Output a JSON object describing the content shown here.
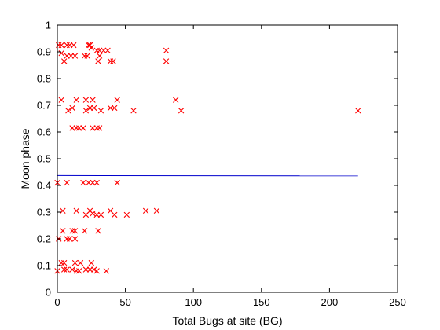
{
  "chart_data": {
    "type": "scatter",
    "title": "",
    "xlabel": "Total Bugs at site (BG)",
    "ylabel": "Moon phase",
    "xlim": [
      0,
      250
    ],
    "ylim": [
      0,
      1
    ],
    "xticks": [
      0,
      50,
      100,
      150,
      200,
      250
    ],
    "yticks": [
      0,
      0.1,
      0.2,
      0.3,
      0.4,
      0.5,
      0.6,
      0.7,
      0.8,
      0.9,
      1
    ],
    "grid": false,
    "legend": "none",
    "marker": "x",
    "marker_color": "#ff0000",
    "trend_color": "#0000cc",
    "trend_line": {
      "x": [
        0,
        221
      ],
      "y": [
        0.437,
        0.436
      ]
    },
    "points": [
      [
        1,
        0.925
      ],
      [
        3,
        0.925
      ],
      [
        7,
        0.925
      ],
      [
        9,
        0.925
      ],
      [
        12,
        0.925
      ],
      [
        23,
        0.925
      ],
      [
        24,
        0.925
      ],
      [
        25,
        0.915
      ],
      [
        29,
        0.905
      ],
      [
        31,
        0.905
      ],
      [
        34,
        0.905
      ],
      [
        37,
        0.905
      ],
      [
        80,
        0.905
      ],
      [
        3,
        0.895
      ],
      [
        7,
        0.885
      ],
      [
        10,
        0.885
      ],
      [
        13,
        0.885
      ],
      [
        20,
        0.885
      ],
      [
        22,
        0.885
      ],
      [
        31,
        0.885
      ],
      [
        5,
        0.865
      ],
      [
        30,
        0.865
      ],
      [
        39,
        0.865
      ],
      [
        41,
        0.865
      ],
      [
        80,
        0.865
      ],
      [
        3,
        0.72
      ],
      [
        14,
        0.72
      ],
      [
        21,
        0.72
      ],
      [
        26,
        0.72
      ],
      [
        44,
        0.72
      ],
      [
        87,
        0.72
      ],
      [
        8,
        0.68
      ],
      [
        11,
        0.69
      ],
      [
        21,
        0.68
      ],
      [
        24,
        0.69
      ],
      [
        27,
        0.69
      ],
      [
        32,
        0.68
      ],
      [
        39,
        0.69
      ],
      [
        42,
        0.69
      ],
      [
        56,
        0.68
      ],
      [
        91,
        0.68
      ],
      [
        221,
        0.68
      ],
      [
        11,
        0.615
      ],
      [
        14,
        0.615
      ],
      [
        16,
        0.615
      ],
      [
        19,
        0.615
      ],
      [
        26,
        0.615
      ],
      [
        29,
        0.615
      ],
      [
        31,
        0.615
      ],
      [
        0,
        0.41
      ],
      [
        7,
        0.41
      ],
      [
        19,
        0.41
      ],
      [
        23,
        0.41
      ],
      [
        26,
        0.41
      ],
      [
        29,
        0.41
      ],
      [
        44,
        0.41
      ],
      [
        4,
        0.305
      ],
      [
        14,
        0.305
      ],
      [
        21,
        0.29
      ],
      [
        24,
        0.305
      ],
      [
        26,
        0.295
      ],
      [
        29,
        0.29
      ],
      [
        32,
        0.29
      ],
      [
        39,
        0.305
      ],
      [
        42,
        0.29
      ],
      [
        51,
        0.29
      ],
      [
        65,
        0.305
      ],
      [
        73,
        0.305
      ],
      [
        4,
        0.23
      ],
      [
        11,
        0.23
      ],
      [
        13,
        0.23
      ],
      [
        20,
        0.23
      ],
      [
        30,
        0.23
      ],
      [
        1,
        0.2
      ],
      [
        7,
        0.2
      ],
      [
        9,
        0.2
      ],
      [
        13,
        0.2
      ],
      [
        3,
        0.11
      ],
      [
        5,
        0.11
      ],
      [
        13,
        0.11
      ],
      [
        17,
        0.11
      ],
      [
        25,
        0.11
      ],
      [
        0,
        0.08
      ],
      [
        5,
        0.085
      ],
      [
        7,
        0.085
      ],
      [
        11,
        0.085
      ],
      [
        14,
        0.08
      ],
      [
        16,
        0.08
      ],
      [
        21,
        0.085
      ],
      [
        24,
        0.085
      ],
      [
        27,
        0.085
      ],
      [
        29,
        0.08
      ],
      [
        36,
        0.08
      ]
    ]
  }
}
